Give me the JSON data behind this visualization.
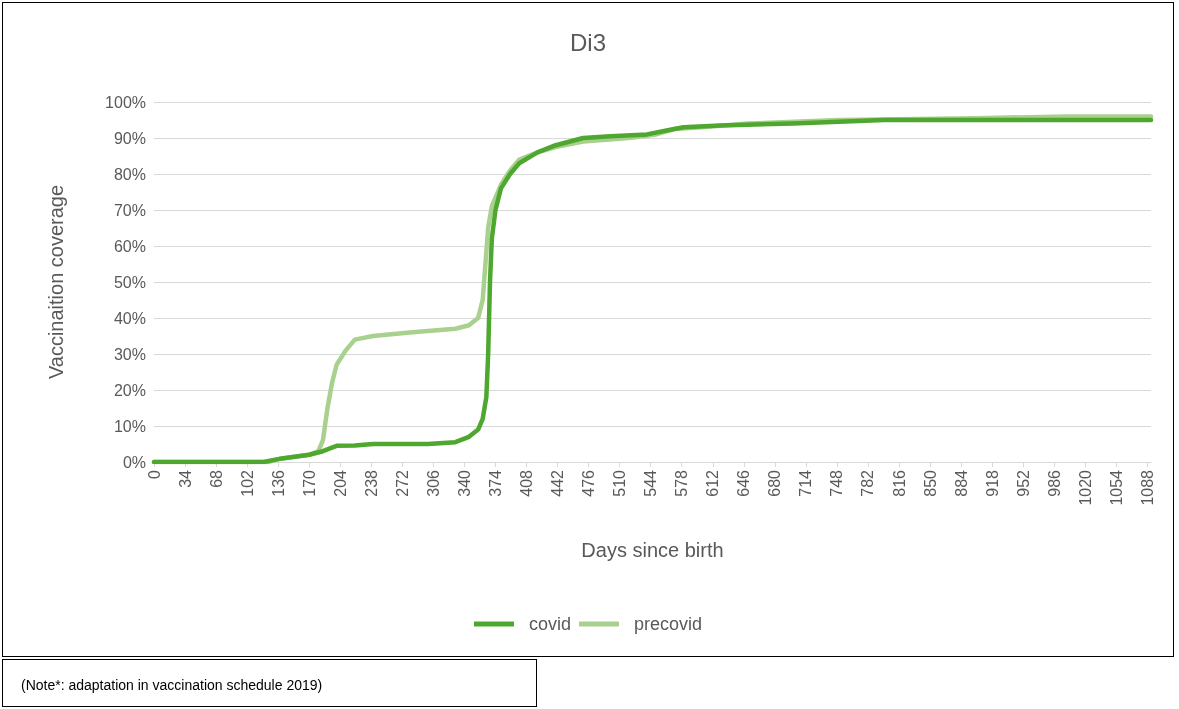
{
  "chart_data": {
    "type": "line",
    "title": "Di3",
    "xlabel": "Days since birth",
    "ylabel": "Vaccinaition coverage",
    "xlim": [
      0,
      1092
    ],
    "xticks": [
      0,
      34,
      68,
      102,
      136,
      170,
      204,
      238,
      272,
      306,
      340,
      374,
      408,
      442,
      476,
      510,
      544,
      578,
      612,
      646,
      680,
      714,
      748,
      782,
      816,
      850,
      884,
      918,
      952,
      986,
      1020,
      1054,
      1088
    ],
    "ylim": [
      0,
      100
    ],
    "yticks": [
      {
        "value": 0,
        "label": "0%"
      },
      {
        "value": 10,
        "label": "10%"
      },
      {
        "value": 20,
        "label": "20%"
      },
      {
        "value": 30,
        "label": "30%"
      },
      {
        "value": 40,
        "label": "40%"
      },
      {
        "value": 50,
        "label": "50%"
      },
      {
        "value": 60,
        "label": "60%"
      },
      {
        "value": 70,
        "label": "70%"
      },
      {
        "value": 80,
        "label": "80%"
      },
      {
        "value": 90,
        "label": "90%"
      },
      {
        "value": 100,
        "label": "100%"
      }
    ],
    "grid": "y",
    "legend": "bottom",
    "marker": "none",
    "line_style": "solid",
    "annotations": [
      "(Note*:  adaptation in vaccination  schedule 2019)"
    ],
    "series": [
      {
        "name": "covid",
        "color": "#4ea72e",
        "x": [
          0,
          120,
          140,
          170,
          185,
          200,
          220,
          240,
          300,
          330,
          345,
          355,
          360,
          364,
          366,
          368,
          370,
          374,
          380,
          390,
          400,
          420,
          440,
          470,
          500,
          540,
          560,
          580,
          620,
          700,
          800,
          1092
        ],
        "values": [
          0,
          0,
          1,
          2,
          3,
          4.5,
          4.6,
          5,
          5,
          5.5,
          7,
          9,
          12,
          18,
          30,
          50,
          62,
          70,
          76,
          80,
          83,
          86,
          88,
          90,
          90.5,
          91,
          92,
          93,
          93.5,
          94,
          95,
          95
        ]
      },
      {
        "name": "precovid",
        "color": "#a9d18e",
        "x": [
          0,
          125,
          140,
          170,
          180,
          185,
          190,
          195,
          200,
          210,
          220,
          240,
          280,
          330,
          345,
          355,
          360,
          363,
          366,
          370,
          380,
          390,
          400,
          420,
          440,
          470,
          520,
          550,
          570,
          600,
          650,
          750,
          900,
          1000,
          1092
        ],
        "values": [
          0,
          0,
          1,
          2,
          3,
          6,
          15,
          22,
          27,
          31,
          34,
          35,
          36,
          37,
          38,
          40,
          45,
          55,
          65,
          71,
          77,
          81,
          84,
          86,
          87.5,
          89,
          90,
          91,
          92.5,
          93,
          94,
          95,
          95.5,
          96,
          96
        ]
      }
    ]
  }
}
